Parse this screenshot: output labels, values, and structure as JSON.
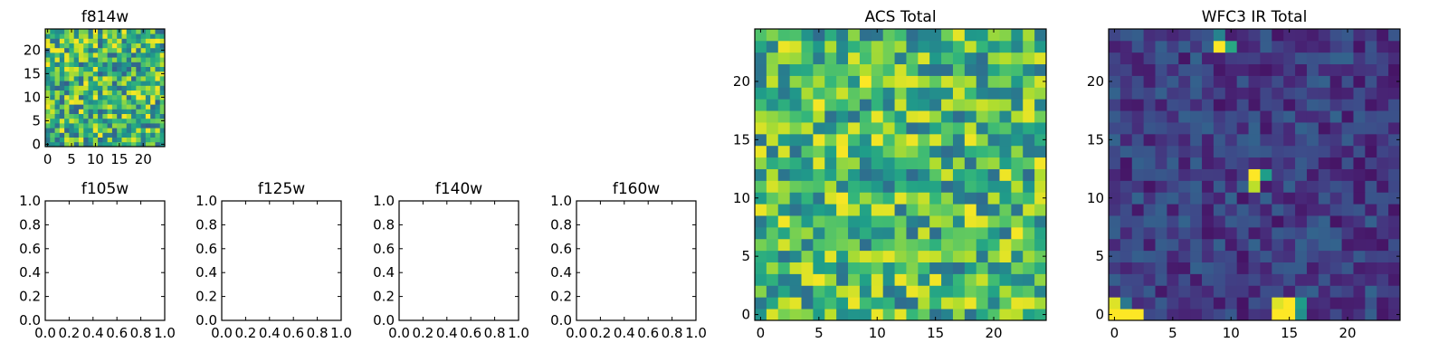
{
  "chart_data": [
    {
      "type": "heatmap",
      "title": "f814w",
      "colormap": "viridis",
      "shape": [
        25,
        25
      ],
      "xlim": [
        -0.5,
        24.5
      ],
      "ylim": [
        -0.5,
        24.5
      ],
      "xticks": [
        0,
        5,
        10,
        15,
        20
      ],
      "yticks": [
        0,
        5,
        10,
        15,
        20
      ],
      "xtick_labels": [
        "0",
        "5",
        "10",
        "15",
        "20"
      ],
      "ytick_labels": [
        "0",
        "5",
        "10",
        "15",
        "20"
      ],
      "value_range": [
        0,
        1
      ],
      "pattern": "noise",
      "noise_range": [
        0.3,
        1.0
      ],
      "seed": 11,
      "peaks": []
    },
    {
      "type": "empty",
      "title": "f105w",
      "xlim": [
        0,
        1
      ],
      "ylim": [
        0,
        1
      ],
      "xticks": [
        0,
        0.2,
        0.4,
        0.6,
        0.8,
        1.0
      ],
      "yticks": [
        0,
        0.2,
        0.4,
        0.6,
        0.8,
        1.0
      ],
      "xtick_labels": [
        "0.0",
        "0.2",
        "0.4",
        "0.6",
        "0.8",
        "1.0"
      ],
      "ytick_labels": [
        "0.0",
        "0.2",
        "0.4",
        "0.6",
        "0.8",
        "1.0"
      ]
    },
    {
      "type": "empty",
      "title": "f125w",
      "xlim": [
        0,
        1
      ],
      "ylim": [
        0,
        1
      ],
      "xticks": [
        0,
        0.2,
        0.4,
        0.6,
        0.8,
        1.0
      ],
      "yticks": [
        0,
        0.2,
        0.4,
        0.6,
        0.8,
        1.0
      ],
      "xtick_labels": [
        "0.0",
        "0.2",
        "0.4",
        "0.6",
        "0.8",
        "1.0"
      ],
      "ytick_labels": [
        "0.0",
        "0.2",
        "0.4",
        "0.6",
        "0.8",
        "1.0"
      ]
    },
    {
      "type": "empty",
      "title": "f140w",
      "xlim": [
        0,
        1
      ],
      "ylim": [
        0,
        1
      ],
      "xticks": [
        0,
        0.2,
        0.4,
        0.6,
        0.8,
        1.0
      ],
      "yticks": [
        0,
        0.2,
        0.4,
        0.6,
        0.8,
        1.0
      ],
      "xtick_labels": [
        "0.0",
        "0.2",
        "0.4",
        "0.6",
        "0.8",
        "1.0"
      ],
      "ytick_labels": [
        "0.0",
        "0.2",
        "0.4",
        "0.6",
        "0.8",
        "1.0"
      ]
    },
    {
      "type": "empty",
      "title": "f160w",
      "xlim": [
        0,
        1
      ],
      "ylim": [
        0,
        1
      ],
      "xticks": [
        0,
        0.2,
        0.4,
        0.6,
        0.8,
        1.0
      ],
      "yticks": [
        0,
        0.2,
        0.4,
        0.6,
        0.8,
        1.0
      ],
      "xtick_labels": [
        "0.0",
        "0.2",
        "0.4",
        "0.6",
        "0.8",
        "1.0"
      ],
      "ytick_labels": [
        "0.0",
        "0.2",
        "0.4",
        "0.6",
        "0.8",
        "1.0"
      ]
    },
    {
      "type": "heatmap",
      "title": "ACS Total",
      "colormap": "viridis",
      "shape": [
        25,
        25
      ],
      "xlim": [
        -0.5,
        24.5
      ],
      "ylim": [
        -0.5,
        24.5
      ],
      "xticks": [
        0,
        5,
        10,
        15,
        20
      ],
      "yticks": [
        0,
        5,
        10,
        15,
        20
      ],
      "xtick_labels": [
        "0",
        "5",
        "10",
        "15",
        "20"
      ],
      "ytick_labels": [
        "0",
        "5",
        "10",
        "15",
        "20"
      ],
      "value_range": [
        0,
        1
      ],
      "pattern": "noise",
      "noise_range": [
        0.35,
        1.0
      ],
      "seed": 29,
      "peaks": []
    },
    {
      "type": "heatmap",
      "title": "WFC3 IR Total",
      "colormap": "viridis",
      "shape": [
        25,
        25
      ],
      "xlim": [
        -0.5,
        24.5
      ],
      "ylim": [
        -0.5,
        24.5
      ],
      "xticks": [
        0,
        5,
        10,
        15,
        20
      ],
      "yticks": [
        0,
        5,
        10,
        15,
        20
      ],
      "xtick_labels": [
        "0",
        "5",
        "10",
        "15",
        "20"
      ],
      "ytick_labels": [
        "0",
        "5",
        "10",
        "15",
        "20"
      ],
      "value_range": [
        0,
        1
      ],
      "pattern": "noise",
      "noise_range": [
        0.05,
        0.32
      ],
      "seed": 53,
      "peaks": [
        {
          "x": 9,
          "y": 23,
          "value": 1.0
        },
        {
          "x": 10,
          "y": 23,
          "value": 0.6
        },
        {
          "x": 9,
          "y": 24,
          "value": 0.45
        },
        {
          "x": 12,
          "y": 12,
          "value": 1.0
        },
        {
          "x": 12,
          "y": 11,
          "value": 0.9
        },
        {
          "x": 13,
          "y": 12,
          "value": 0.55
        },
        {
          "x": 14,
          "y": 1,
          "value": 0.95
        },
        {
          "x": 15,
          "y": 1,
          "value": 1.0
        },
        {
          "x": 14,
          "y": 0,
          "value": 1.0
        },
        {
          "x": 15,
          "y": 0,
          "value": 1.0
        },
        {
          "x": 16,
          "y": 1,
          "value": 0.55
        },
        {
          "x": 16,
          "y": 0,
          "value": 0.5
        },
        {
          "x": 0,
          "y": 0,
          "value": 1.0
        },
        {
          "x": 1,
          "y": 0,
          "value": 1.0
        },
        {
          "x": 2,
          "y": 0,
          "value": 1.0
        },
        {
          "x": 0,
          "y": 1,
          "value": 0.95
        },
        {
          "x": 1,
          "y": 1,
          "value": 0.4
        }
      ]
    }
  ]
}
